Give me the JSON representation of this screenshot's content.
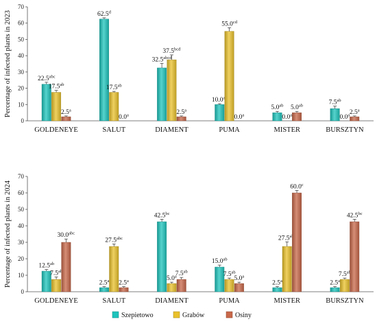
{
  "chart_data": [
    {
      "type": "bar",
      "ylabel": "Percentage of infected plants in 2023",
      "ylim": [
        0,
        70
      ],
      "yticks": [
        0,
        10,
        20,
        30,
        40,
        50,
        60,
        70
      ],
      "grid": false,
      "categories": [
        "GOLDENEYE",
        "SALUT",
        "DIAMENT",
        "PUMA",
        "MISTER",
        "BURSZTYN"
      ],
      "series": [
        {
          "name": "Szepietowo",
          "color": "#1ec4bc",
          "values": [
            22.5,
            62.5,
            32.5,
            10.0,
            5.0,
            7.5
          ],
          "labels": [
            "22.5",
            "62.5",
            "32.5",
            "10.0",
            "5.0",
            "7.5"
          ],
          "letters": [
            "abc",
            "d",
            "abcd",
            "ab",
            "ab",
            "ab"
          ],
          "errors": [
            1.2,
            0.8,
            2.8,
            0.5,
            0.8,
            1.5
          ]
        },
        {
          "name": "Grabów",
          "color": "#e9c12c",
          "values": [
            17.5,
            17.5,
            37.5,
            55.0,
            0.0,
            0.0
          ],
          "labels": [
            "17.5",
            "17.5",
            "37.5",
            "55.0",
            "0.0",
            "0.0"
          ],
          "letters": [
            "ab",
            "ab",
            "bcd",
            "cd",
            "a",
            "a"
          ],
          "errors": [
            1.2,
            0.6,
            3.0,
            2.2,
            0,
            0
          ]
        },
        {
          "name": "Osiny",
          "color": "#c8684a",
          "values": [
            2.5,
            0.0,
            2.5,
            0.0,
            5.0,
            2.5
          ],
          "labels": [
            "2.5",
            "0.0",
            "2.5",
            "0.0",
            "5.0",
            "2.5"
          ],
          "letters": [
            "a",
            "a",
            "a",
            "a",
            "ab",
            "a"
          ],
          "errors": [
            0.5,
            0,
            0.5,
            0,
            0.8,
            0.5
          ]
        }
      ]
    },
    {
      "type": "bar",
      "ylabel": "Percentage of infected plants in 2024",
      "ylim": [
        0,
        70
      ],
      "yticks": [
        0,
        10,
        20,
        30,
        40,
        50,
        60,
        70
      ],
      "grid": false,
      "categories": [
        "GOLDENEYE",
        "SALUT",
        "DIAMENT",
        "PUMA",
        "MISTER",
        "BURSZTYN"
      ],
      "series": [
        {
          "name": "Szepietowo",
          "color": "#1ec4bc",
          "values": [
            12.5,
            2.5,
            42.5,
            15.0,
            2.5,
            2.5
          ],
          "labels": [
            "12.5",
            "2.5",
            "42.5",
            "15.0",
            "2.5",
            "2.5"
          ],
          "letters": [
            "ab",
            "a",
            "bc",
            "ab",
            "a",
            "a"
          ],
          "errors": [
            1.0,
            0.6,
            1.5,
            1.2,
            0.6,
            0.6
          ]
        },
        {
          "name": "Grabów",
          "color": "#e9c12c",
          "values": [
            7.5,
            27.5,
            5.0,
            7.5,
            27.5,
            7.5
          ],
          "labels": [
            "7.5",
            "27.5",
            "5.0",
            "7.5",
            "27.5",
            "7.5"
          ],
          "letters": [
            "ab",
            "abc",
            "a",
            "ab",
            "abc",
            "ab"
          ],
          "errors": [
            1.5,
            1.5,
            0.8,
            0.8,
            2.8,
            0.8
          ]
        },
        {
          "name": "Osiny",
          "color": "#c8684a",
          "values": [
            30.0,
            2.5,
            7.5,
            5.0,
            60.0,
            42.5
          ],
          "labels": [
            "30.0",
            "2.5",
            "7.5",
            "5.0",
            "60.0",
            "42.5"
          ],
          "letters": [
            "abc",
            "a",
            "ab",
            "a",
            "c",
            "bc"
          ],
          "errors": [
            2.0,
            0.6,
            1.2,
            0.8,
            1.5,
            1.5
          ]
        }
      ]
    }
  ],
  "legend": {
    "placement": "bottom-center",
    "items": [
      {
        "name": "Szepietowo",
        "color": "#1ec4bc"
      },
      {
        "name": "Grabów",
        "color": "#e9c12c"
      },
      {
        "name": "Osiny",
        "color": "#c8684a"
      }
    ]
  }
}
